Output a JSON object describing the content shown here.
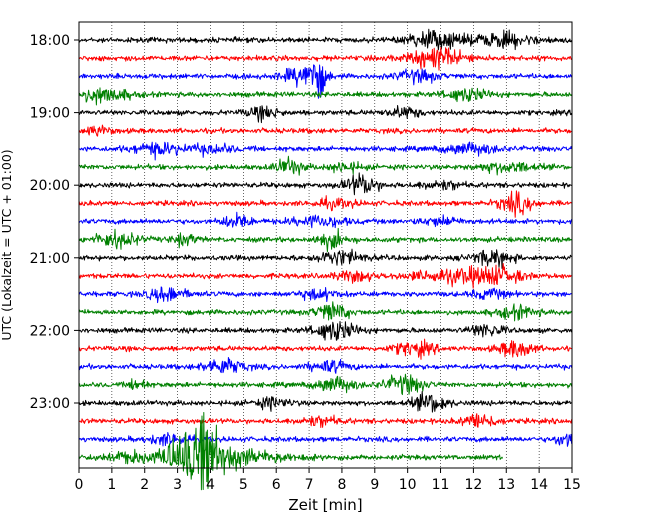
{
  "chart_data": {
    "type": "line",
    "title": "",
    "xlabel": "Zeit  [min]",
    "ylabel": "UTC (Lokalzeit = UTC + 01:00)",
    "xlim": [
      0,
      15
    ],
    "xticks": [
      0,
      1,
      2,
      3,
      4,
      5,
      6,
      7,
      8,
      9,
      10,
      11,
      12,
      13,
      14,
      15
    ],
    "grid_x": true,
    "row_interval_minutes": 15,
    "yticks": [
      "18:00",
      "19:00",
      "20:00",
      "21:00",
      "22:00",
      "23:00"
    ],
    "trace_colors": [
      "#000000",
      "#ff0000",
      "#0000ff",
      "#008000"
    ],
    "traces": [
      {
        "label": "18:00",
        "end_min": 15
      },
      {
        "label": "18:15",
        "end_min": 15
      },
      {
        "label": "18:30",
        "end_min": 15
      },
      {
        "label": "18:45",
        "end_min": 15
      },
      {
        "label": "19:00",
        "end_min": 15
      },
      {
        "label": "19:15",
        "end_min": 15
      },
      {
        "label": "19:30",
        "end_min": 15
      },
      {
        "label": "19:45",
        "end_min": 15
      },
      {
        "label": "20:00",
        "end_min": 15
      },
      {
        "label": "20:15",
        "end_min": 15
      },
      {
        "label": "20:30",
        "end_min": 15
      },
      {
        "label": "20:45",
        "end_min": 15
      },
      {
        "label": "21:00",
        "end_min": 15
      },
      {
        "label": "21:15",
        "end_min": 15
      },
      {
        "label": "21:30",
        "end_min": 15
      },
      {
        "label": "21:45",
        "end_min": 15
      },
      {
        "label": "22:00",
        "end_min": 15
      },
      {
        "label": "22:15",
        "end_min": 15
      },
      {
        "label": "22:30",
        "end_min": 15
      },
      {
        "label": "22:45",
        "end_min": 15
      },
      {
        "label": "23:00",
        "end_min": 15
      },
      {
        "label": "23:15",
        "end_min": 15
      },
      {
        "label": "23:30",
        "end_min": 15
      },
      {
        "label": "23:45",
        "end_min": 12.9
      }
    ]
  }
}
